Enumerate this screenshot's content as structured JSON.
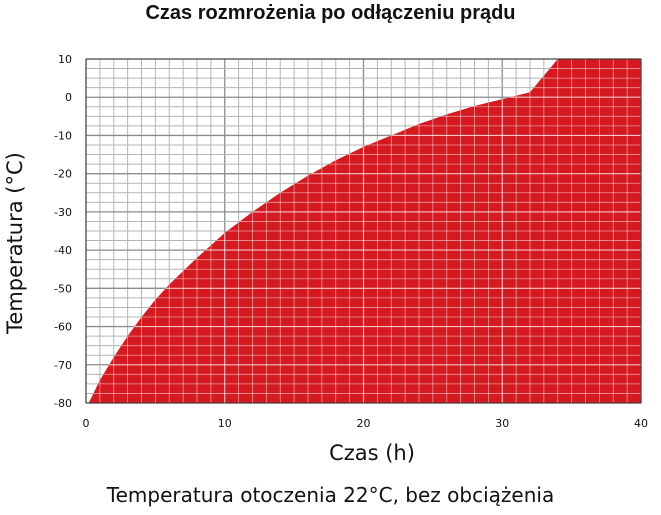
{
  "chart_data": {
    "type": "area",
    "title": "Czas rozmrożenia po odłączeniu prądu",
    "subtitle": "Temperatura otoczenia 22°C, bez obciążenia",
    "xlabel": "Czas (h)",
    "ylabel": "Temperatura (°C)",
    "xlim": [
      0,
      40
    ],
    "ylim": [
      -80,
      10
    ],
    "x_ticks": [
      0,
      10,
      20,
      30,
      40
    ],
    "y_ticks": [
      10,
      0,
      -10,
      -20,
      -30,
      -40,
      -50,
      -60,
      -70,
      -80
    ],
    "grid": true,
    "series": [
      {
        "color": "#d41920",
        "x": [
          0.2,
          1,
          2,
          3,
          4,
          5,
          6,
          8,
          10,
          12,
          14,
          16,
          18,
          20,
          22,
          24,
          26,
          28,
          30,
          32,
          34,
          40
        ],
        "y": [
          -80,
          -74,
          -68,
          -62.5,
          -57.5,
          -53,
          -49,
          -42,
          -35.5,
          -30,
          -25,
          -20.5,
          -16.5,
          -13,
          -10,
          -7,
          -4.5,
          -2.3,
          -0.5,
          1.3,
          10,
          10
        ]
      }
    ]
  }
}
